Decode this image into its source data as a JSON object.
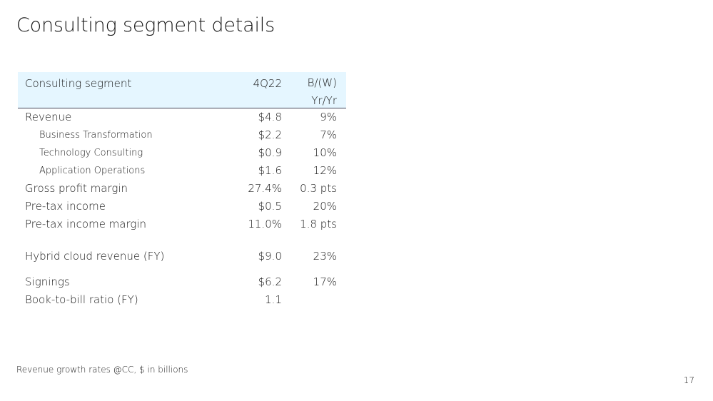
{
  "slide": {
    "title": "Consulting segment details",
    "footnote": "Revenue growth rates @CC, $ in billions",
    "page_number": "17"
  },
  "table": {
    "header": {
      "label": "Consulting segment",
      "period": "4Q22",
      "change_line1": "B/(W)",
      "change_line2": "Yr/Yr"
    },
    "rows": [
      {
        "label": "Revenue",
        "value": "$4.8",
        "change": "9%"
      },
      {
        "label": "Business Transformation",
        "value": "$2.2",
        "change": "7%"
      },
      {
        "label": "Technology Consulting",
        "value": "$0.9",
        "change": "10%"
      },
      {
        "label": "Application Operations",
        "value": "$1.6",
        "change": "12%"
      },
      {
        "label": "Gross profit margin",
        "value": "27.4%",
        "change": "0.3 pts"
      },
      {
        "label": "Pre-tax income",
        "value": "$0.5",
        "change": "20%"
      },
      {
        "label": "Pre-tax income margin",
        "value": "11.0%",
        "change": "1.8 pts"
      },
      {
        "label": "Hybrid cloud revenue (FY)",
        "value": "$9.0",
        "change": "23%"
      },
      {
        "label": "Signings",
        "value": "$6.2",
        "change": "17%"
      },
      {
        "label": "Book-to-bill ratio (FY)",
        "value": "1.1",
        "change": ""
      }
    ]
  }
}
